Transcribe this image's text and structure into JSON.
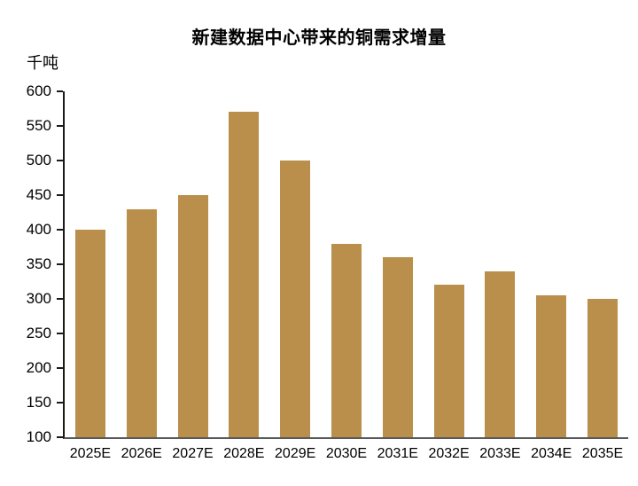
{
  "chart_data": {
    "type": "bar",
    "title": "新建数据中心带来的铜需求增量",
    "ylabel": "千吨",
    "xlabel": "",
    "categories": [
      "2025E",
      "2026E",
      "2027E",
      "2028E",
      "2029E",
      "2030E",
      "2031E",
      "2032E",
      "2033E",
      "2034E",
      "2035E"
    ],
    "values": [
      400,
      430,
      450,
      570,
      500,
      380,
      360,
      320,
      340,
      305,
      300
    ],
    "ylim": [
      100,
      600
    ],
    "yticks": [
      600,
      550,
      500,
      450,
      400,
      350,
      300,
      250,
      200,
      150,
      100
    ],
    "grid": false,
    "legend": "none",
    "colors": {
      "bar": "#BA8F4B",
      "axis_line": "#1A1A1A",
      "baseline": "#595959",
      "text": "#000000"
    }
  }
}
